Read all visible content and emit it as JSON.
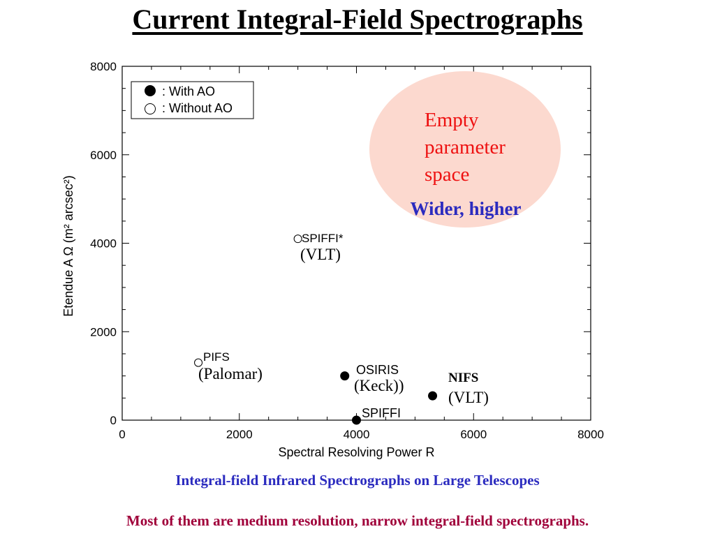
{
  "slide": {
    "title": "Current Integral-Field Spectrographs",
    "caption": "Integral-field Infrared Spectrographs on Large Telescopes",
    "footer": "Most of them are medium resolution, narrow integral-field spectrographs."
  },
  "chart_data": {
    "type": "scatter",
    "xlabel": "Spectral Resolving Power R",
    "ylabel": "Etendue A Ω (m² arcsec²)",
    "xlim": [
      0,
      8000
    ],
    "ylim": [
      0,
      8000
    ],
    "xticks": [
      0,
      2000,
      4000,
      6000,
      8000
    ],
    "yticks": [
      0,
      2000,
      4000,
      6000,
      8000
    ],
    "grid": false,
    "legend": {
      "placement": "top-left",
      "entries": [
        {
          "marker": "filled",
          "label": ": With AO"
        },
        {
          "marker": "open",
          "label": ": Without AO"
        }
      ]
    },
    "points": [
      {
        "name": "SPIFFI*",
        "sub": "(VLT)",
        "x": 3000,
        "y": 4100,
        "ao": false
      },
      {
        "name": "PIFS",
        "sub": "(Palomar)",
        "x": 1300,
        "y": 1300,
        "ao": false
      },
      {
        "name": "OSIRIS",
        "sub": "(Keck))",
        "x": 3800,
        "y": 1000,
        "ao": true
      },
      {
        "name": "NIFS",
        "sub": "(VLT)",
        "x": 5300,
        "y": 550,
        "ao": true
      },
      {
        "name": "SPIFFI",
        "sub": "",
        "x": 4000,
        "y": 0,
        "ao": true
      }
    ],
    "annotations": {
      "region_label": [
        "Empty",
        "parameter",
        "space"
      ],
      "direction_label": "Wider, higher",
      "region_color": "#fcd9cf",
      "region_text_color": "#ee1111",
      "direction_text_color": "#2b2bbf"
    }
  }
}
